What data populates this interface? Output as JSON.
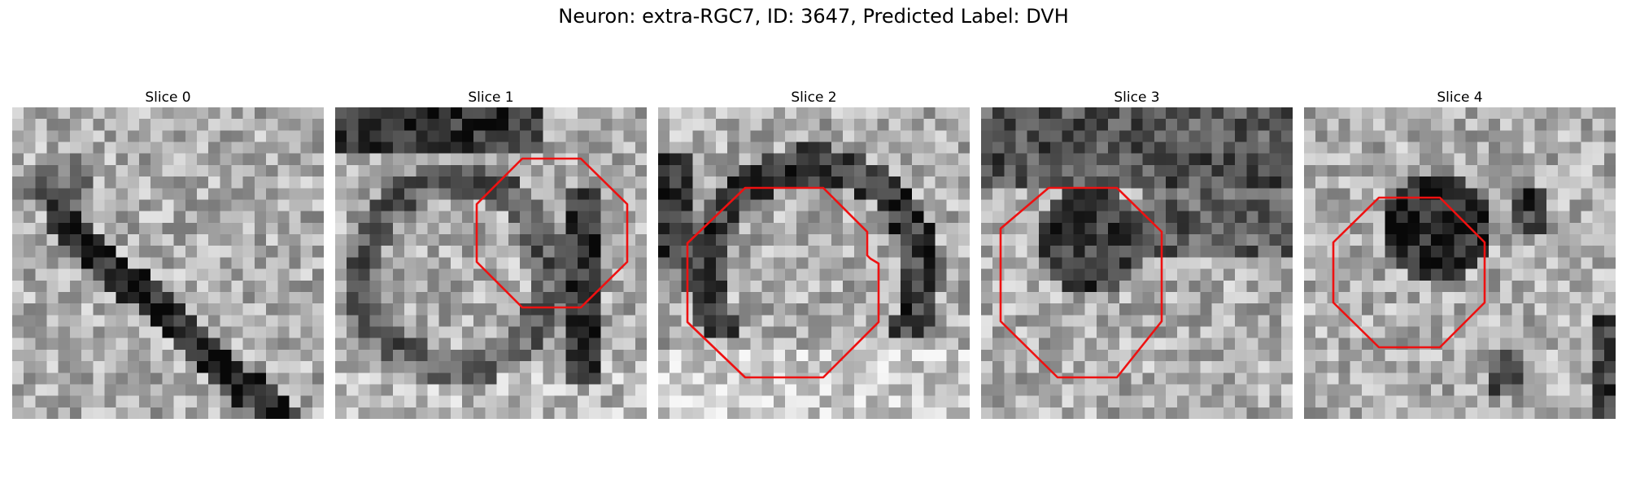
{
  "figure": {
    "title": "Neuron: extra-RGC7, ID: 3647, Predicted Label: DVH"
  },
  "panels": [
    {
      "title": "Slice 0",
      "roi": false,
      "seed": 11
    },
    {
      "title": "Slice 1",
      "roi": true,
      "seed": 23
    },
    {
      "title": "Slice 2",
      "roi": true,
      "seed": 37
    },
    {
      "title": "Slice 3",
      "roi": true,
      "seed": 41
    },
    {
      "title": "Slice 4",
      "roi": true,
      "seed": 59
    }
  ],
  "colors": {
    "roi_outline": "#ee1111",
    "colormap": "grayscale"
  },
  "image_grid": {
    "rows": 27,
    "cols": 27
  }
}
